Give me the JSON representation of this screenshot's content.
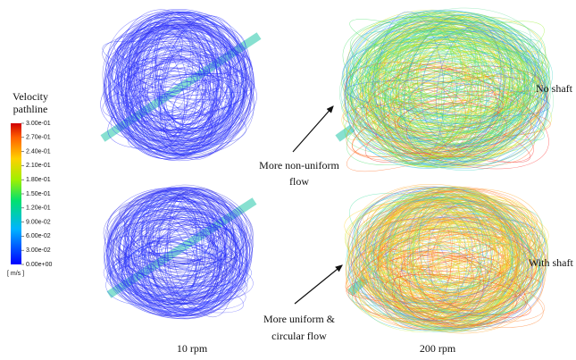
{
  "legend": {
    "title_line1": "Velocity",
    "title_line2": "pathline",
    "unit": "[ m/s ]",
    "ticks": [
      "3.00e-01",
      "2.70e-01",
      "2.40e-01",
      "2.10e-01",
      "1.80e-01",
      "1.50e-01",
      "1.20e-01",
      "9.00e-02",
      "6.00e-02",
      "3.00e-02",
      "0.00e+00"
    ]
  },
  "rows": [
    {
      "label": "No shaft",
      "annotation_line1": "More non-uniform",
      "annotation_line2": "flow"
    },
    {
      "label": "With shaft",
      "annotation_line1": "More uniform &",
      "annotation_line2": "circular flow"
    }
  ],
  "columns": [
    "10 rpm",
    "200 rpm"
  ]
}
